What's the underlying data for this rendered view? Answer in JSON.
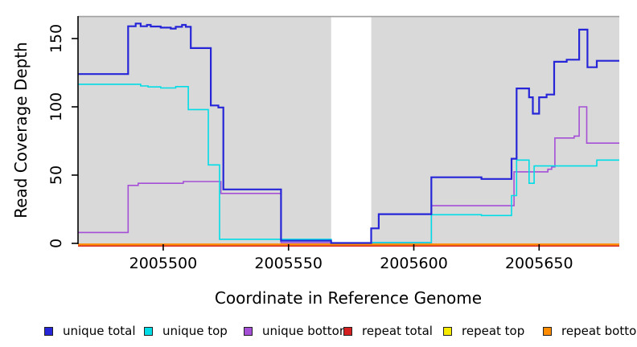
{
  "chart_data": {
    "type": "line",
    "step": true,
    "title": "",
    "xlabel": "Coordinate in Reference Genome",
    "ylabel": "Read Coverage Depth",
    "xlim": [
      2005466,
      2005682
    ],
    "ylim": [
      0,
      166
    ],
    "x_ticks": [
      2005500,
      2005550,
      2005600,
      2005650
    ],
    "y_ticks": [
      0,
      50,
      100,
      150
    ],
    "grid": false,
    "legend_position": "bottom",
    "plot_background": "#d9d9d9",
    "gap_region": {
      "from": 2005567,
      "to": 2005583,
      "color": "#ffffff"
    },
    "series": [
      {
        "name": "unique total",
        "color": "#2626d8",
        "points": [
          [
            2005466,
            124
          ],
          [
            2005486,
            159
          ],
          [
            2005489,
            161
          ],
          [
            2005491,
            159
          ],
          [
            2005493.5,
            160
          ],
          [
            2005495,
            158.8
          ],
          [
            2005499,
            158
          ],
          [
            2005503,
            157.3
          ],
          [
            2005505,
            158.6
          ],
          [
            2005507.5,
            160
          ],
          [
            2005509,
            158.6
          ],
          [
            2005511,
            143
          ],
          [
            2005519,
            101
          ],
          [
            2005522,
            99.5
          ],
          [
            2005524,
            39.5
          ],
          [
            2005547,
            2
          ],
          [
            2005567,
            0.3
          ],
          [
            2005583,
            11
          ],
          [
            2005586,
            21.4
          ],
          [
            2005607,
            48.4
          ],
          [
            2005627,
            47.2
          ],
          [
            2005639,
            62
          ],
          [
            2005641,
            113.5
          ],
          [
            2005646,
            107
          ],
          [
            2005647.5,
            95
          ],
          [
            2005650,
            107
          ],
          [
            2005653,
            109
          ],
          [
            2005656,
            133
          ],
          [
            2005661,
            134.5
          ],
          [
            2005666,
            156.5
          ],
          [
            2005669.3,
            129
          ],
          [
            2005673,
            133.7
          ]
        ]
      },
      {
        "name": "unique top",
        "color": "#00dde6",
        "points": [
          [
            2005466,
            116.5
          ],
          [
            2005491,
            115.3
          ],
          [
            2005494,
            114.6
          ],
          [
            2005499,
            113.8
          ],
          [
            2005505,
            114.8
          ],
          [
            2005510,
            98
          ],
          [
            2005518,
            57.5
          ],
          [
            2005522.5,
            3
          ],
          [
            2005567,
            0.3
          ],
          [
            2005583,
            0.5
          ],
          [
            2005607,
            21
          ],
          [
            2005627,
            20.4
          ],
          [
            2005639,
            35
          ],
          [
            2005641,
            61
          ],
          [
            2005646,
            44
          ],
          [
            2005648,
            56.7
          ],
          [
            2005673,
            61
          ]
        ]
      },
      {
        "name": "unique bottom",
        "color": "#a44fd6",
        "points": [
          [
            2005466,
            8
          ],
          [
            2005486,
            42.5
          ],
          [
            2005490,
            44
          ],
          [
            2005508,
            45.3
          ],
          [
            2005523,
            36.6
          ],
          [
            2005547,
            0.5
          ],
          [
            2005567,
            0.2
          ],
          [
            2005583,
            0.5
          ],
          [
            2005607,
            27.6
          ],
          [
            2005640,
            52.4
          ],
          [
            2005653.5,
            54.3
          ],
          [
            2005655,
            56
          ],
          [
            2005656.3,
            77.2
          ],
          [
            2005664,
            78.6
          ],
          [
            2005666,
            100
          ],
          [
            2005669,
            73.4
          ]
        ]
      },
      {
        "name": "repeat total",
        "color": "#d42020",
        "points": [
          [
            2005466,
            0
          ]
        ]
      },
      {
        "name": "repeat top",
        "color": "#f5ea00",
        "points": [
          [
            2005466,
            0
          ]
        ]
      },
      {
        "name": "repeat bottom",
        "color": "#ff8c00",
        "points": [
          [
            2005466,
            0
          ]
        ]
      }
    ]
  }
}
